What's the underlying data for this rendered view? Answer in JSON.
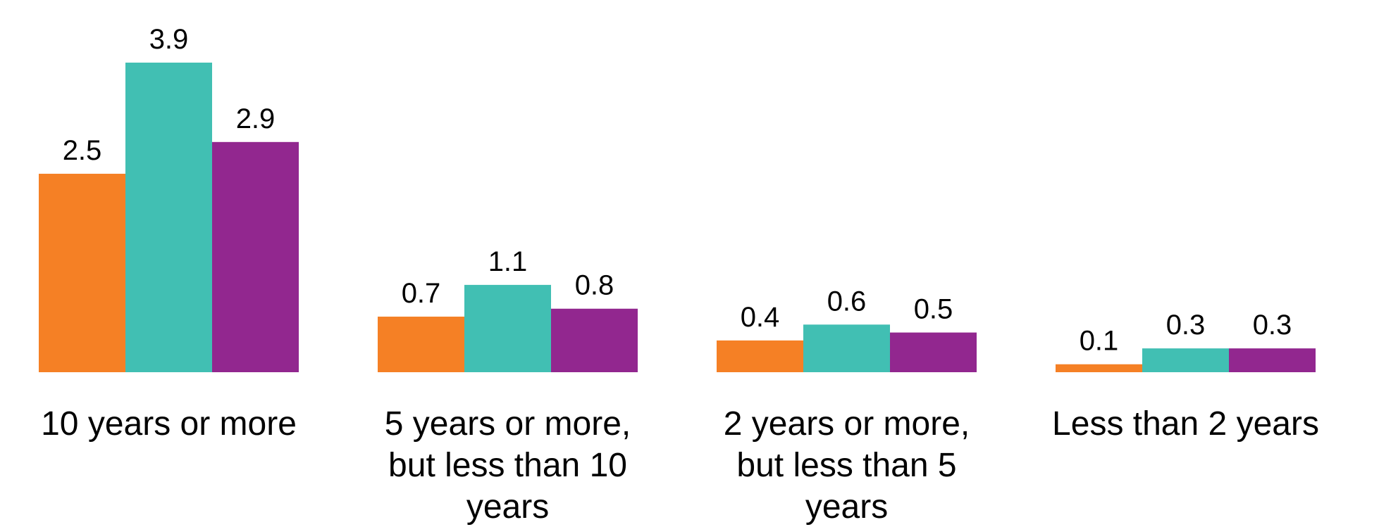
{
  "chart_data": {
    "type": "bar",
    "categories": [
      "10 years or more",
      "5 years or more, but less than 10 years",
      "2 years or more, but less than 5 years",
      "Less than 2 years"
    ],
    "category_label_lines": [
      [
        "10 years or more"
      ],
      [
        "5 years or more,",
        "but less than 10",
        "years"
      ],
      [
        "2 years or more,",
        "but less than 5",
        "years"
      ],
      [
        "Less than 2 years"
      ]
    ],
    "series": [
      {
        "values": [
          2.5,
          0.7,
          0.4,
          0.1
        ],
        "color": "#F58025"
      },
      {
        "values": [
          3.9,
          1.1,
          0.6,
          0.3
        ],
        "color": "#41BFB3"
      },
      {
        "values": [
          2.9,
          0.8,
          0.5,
          0.3
        ],
        "color": "#92278F"
      }
    ],
    "value_labels": [
      [
        "2.5",
        "0.7",
        "0.4",
        "0.1"
      ],
      [
        "3.9",
        "1.1",
        "0.6",
        "0.3"
      ],
      [
        "2.9",
        "0.8",
        "0.5",
        "0.3"
      ]
    ],
    "ylim": [
      0,
      3.9
    ],
    "grid": false,
    "legend": "none",
    "title": "",
    "xlabel": "",
    "ylabel": ""
  }
}
